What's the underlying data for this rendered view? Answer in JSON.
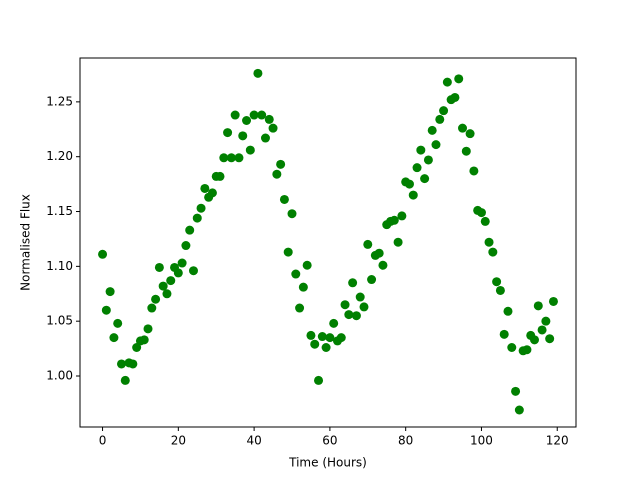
{
  "chart_data": {
    "type": "scatter",
    "xlabel": "Time (Hours)",
    "ylabel": "Normalised Flux",
    "color": "#008000",
    "x": [
      0,
      1,
      2,
      3,
      4,
      5,
      6,
      7,
      8,
      9,
      10,
      11,
      12,
      13,
      14,
      15,
      16,
      17,
      18,
      19,
      20,
      21,
      22,
      23,
      24,
      25,
      26,
      27,
      28,
      29,
      30,
      31,
      32,
      33,
      34,
      35,
      36,
      37,
      38,
      39,
      40,
      41,
      42,
      43,
      44,
      45,
      46,
      47,
      48,
      49,
      50,
      51,
      52,
      53,
      54,
      55,
      56,
      57,
      58,
      59,
      60,
      61,
      62,
      63,
      64,
      65,
      66,
      67,
      68,
      69,
      70,
      71,
      72,
      73,
      74,
      75,
      76,
      77,
      78,
      79,
      80,
      81,
      82,
      83,
      84,
      85,
      86,
      87,
      88,
      89,
      90,
      91,
      92,
      93,
      94,
      95,
      96,
      97,
      98,
      99,
      100,
      101,
      102,
      103,
      104,
      105,
      106,
      107,
      108,
      109,
      110,
      111,
      112,
      113,
      114,
      115,
      116,
      117,
      118,
      119
    ],
    "values": [
      1.111,
      1.06,
      1.077,
      1.035,
      1.048,
      1.011,
      0.996,
      1.012,
      1.011,
      1.026,
      1.032,
      1.033,
      1.043,
      1.062,
      1.07,
      1.099,
      1.082,
      1.075,
      1.087,
      1.099,
      1.094,
      1.103,
      1.119,
      1.133,
      1.096,
      1.144,
      1.153,
      1.171,
      1.163,
      1.167,
      1.182,
      1.182,
      1.199,
      1.222,
      1.199,
      1.238,
      1.199,
      1.219,
      1.233,
      1.206,
      1.238,
      1.276,
      1.238,
      1.217,
      1.234,
      1.226,
      1.184,
      1.193,
      1.161,
      1.113,
      1.148,
      1.093,
      1.062,
      1.081,
      1.101,
      1.037,
      1.029,
      0.996,
      1.036,
      1.026,
      1.035,
      1.048,
      1.032,
      1.035,
      1.065,
      1.056,
      1.085,
      1.055,
      1.072,
      1.063,
      1.12,
      1.088,
      1.11,
      1.112,
      1.101,
      1.138,
      1.141,
      1.142,
      1.122,
      1.146,
      1.177,
      1.175,
      1.165,
      1.19,
      1.206,
      1.18,
      1.197,
      1.224,
      1.211,
      1.234,
      1.242,
      1.268,
      1.252,
      1.254,
      1.271,
      1.226,
      1.205,
      1.221,
      1.187,
      1.151,
      1.149,
      1.141,
      1.122,
      1.113,
      1.086,
      1.078,
      1.038,
      1.059,
      1.026,
      0.986,
      0.969,
      1.023,
      1.024,
      1.037,
      1.033,
      1.064,
      1.042,
      1.05,
      1.034,
      1.068
    ],
    "xlim": [
      -5.95,
      124.95
    ],
    "ylim": [
      0.9535,
      1.29
    ],
    "xticks": [
      0,
      20,
      40,
      60,
      80,
      100,
      120
    ],
    "yticks": [
      {
        "value": 1.0,
        "label": "1.00"
      },
      1.05,
      {
        "value": 1.1,
        "label": "1.10"
      },
      1.15,
      {
        "value": 1.2,
        "label": "1.20"
      },
      1.25
    ]
  }
}
